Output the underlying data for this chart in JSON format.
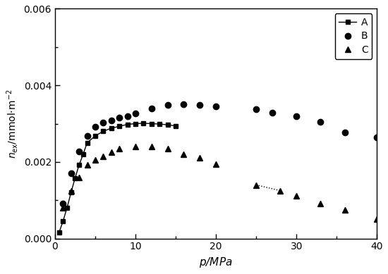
{
  "title": "",
  "xlabel": "p/MPa",
  "ylabel": "n_ex/mmol·m^-2",
  "xlim": [
    0,
    40
  ],
  "ylim": [
    0,
    0.006
  ],
  "series_A": {
    "p": [
      0.5,
      1.0,
      1.5,
      2.0,
      2.5,
      3.0,
      3.5,
      4.0,
      5.0,
      6.0,
      7.0,
      8.0,
      9.0,
      10.0,
      11.0,
      12.0,
      13.0,
      14.0,
      15.0
    ],
    "n": [
      0.00015,
      0.00045,
      0.0008,
      0.0012,
      0.00158,
      0.00192,
      0.0022,
      0.0025,
      0.00268,
      0.0028,
      0.00288,
      0.00293,
      0.00298,
      0.003,
      0.00301,
      0.003,
      0.00299,
      0.00297,
      0.00294
    ],
    "marker": "s",
    "linestyle": "-",
    "color": "black",
    "label": "A",
    "markersize": 4.5
  },
  "series_B": {
    "p": [
      1.0,
      2.0,
      3.0,
      4.0,
      5.0,
      6.0,
      7.0,
      8.0,
      9.0,
      10.0,
      12.0,
      14.0,
      16.0,
      18.0,
      20.0,
      25.0,
      27.0,
      30.0,
      33.0,
      36.0,
      40.0
    ],
    "n": [
      0.00092,
      0.0017,
      0.00228,
      0.00268,
      0.00292,
      0.00302,
      0.00308,
      0.00315,
      0.0032,
      0.00326,
      0.0034,
      0.00348,
      0.0035,
      0.00348,
      0.00345,
      0.00338,
      0.00328,
      0.0032,
      0.00305,
      0.00278,
      0.00265
    ],
    "marker": "o",
    "linestyle": "none",
    "color": "black",
    "label": "B",
    "markersize": 6
  },
  "series_C": {
    "p": [
      1.0,
      2.0,
      3.0,
      4.0,
      5.0,
      6.0,
      7.0,
      8.0,
      10.0,
      12.0,
      14.0,
      16.0,
      18.0,
      20.0,
      25.0,
      28.0,
      30.0,
      33.0,
      36.0,
      40.0
    ],
    "n": [
      0.0008,
      0.00125,
      0.0016,
      0.00192,
      0.00205,
      0.00215,
      0.00225,
      0.00235,
      0.0024,
      0.0024,
      0.00235,
      0.0022,
      0.0021,
      0.00195,
      0.0014,
      0.00125,
      0.00112,
      0.00092,
      0.00075,
      0.0005
    ],
    "marker": "^",
    "linestyle": "none",
    "color": "black",
    "label": "C",
    "markersize": 6
  },
  "series_C_dashed": {
    "p": [
      25.0,
      28.0
    ],
    "n": [
      0.0014,
      0.00125
    ],
    "linestyle": ":",
    "color": "black"
  }
}
